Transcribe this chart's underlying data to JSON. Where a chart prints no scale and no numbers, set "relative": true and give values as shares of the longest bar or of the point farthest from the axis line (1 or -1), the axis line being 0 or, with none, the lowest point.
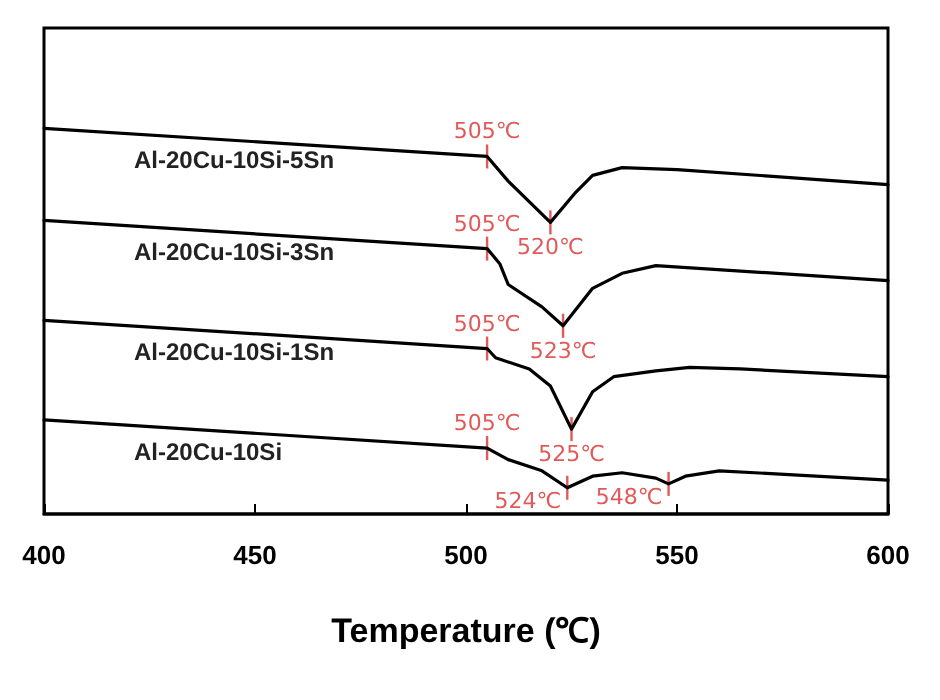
{
  "chart_data": {
    "type": "line",
    "relative": true,
    "xlabel": "Temperature (℃)",
    "xlim": [
      400,
      600
    ],
    "xticks": [
      400,
      450,
      500,
      550,
      600
    ],
    "grid": false,
    "legend": false,
    "marker": "none",
    "line_style": "solid",
    "series": [
      {
        "name": "Al-20Cu-10Si-5Sn",
        "color": "#000000",
        "x": [
          400,
          505,
          510,
          514,
          520,
          526,
          530,
          537,
          550,
          600
        ],
        "values": [
          1,
          0.927,
          0.863,
          0.82,
          0.756,
          0.834,
          0.878,
          0.898,
          0.893,
          0.854
        ]
      },
      {
        "name": "Al-20Cu-10Si-3Sn",
        "color": "#000000",
        "x": [
          400,
          505,
          508,
          510,
          518,
          523,
          530,
          537,
          545,
          600
        ],
        "values": [
          0.761,
          0.688,
          0.649,
          0.595,
          0.537,
          0.488,
          0.585,
          0.624,
          0.644,
          0.605
        ]
      },
      {
        "name": "Al-20Cu-10Si-1Sn",
        "color": "#000000",
        "x": [
          400,
          505,
          507,
          515,
          520,
          525,
          530,
          535,
          545,
          553,
          565,
          600
        ],
        "values": [
          0.502,
          0.429,
          0.405,
          0.376,
          0.332,
          0.22,
          0.317,
          0.356,
          0.371,
          0.38,
          0.376,
          0.356
        ]
      },
      {
        "name": "Al-20Cu-10Si",
        "color": "#000000",
        "x": [
          400,
          505,
          510,
          518,
          524,
          530,
          537,
          545,
          548,
          552,
          560,
          600
        ],
        "values": [
          0.244,
          0.171,
          0.141,
          0.112,
          0.068,
          0.098,
          0.107,
          0.093,
          0.078,
          0.098,
          0.112,
          0.088
        ]
      }
    ],
    "annotations": [
      {
        "text": "505℃",
        "x": 505,
        "y": 0.927
      },
      {
        "text": "520℃",
        "x": 520,
        "y": 0.756
      },
      {
        "text": "505℃",
        "x": 505,
        "y": 0.688
      },
      {
        "text": "523℃",
        "x": 523,
        "y": 0.488
      },
      {
        "text": "505℃",
        "x": 505,
        "y": 0.429
      },
      {
        "text": "525℃",
        "x": 525,
        "y": 0.22
      },
      {
        "text": "505℃",
        "x": 505,
        "y": 0.171
      },
      {
        "text": "524℃",
        "x": 524,
        "y": 0.068
      },
      {
        "text": "548℃",
        "x": 548,
        "y": 0.078
      }
    ]
  }
}
